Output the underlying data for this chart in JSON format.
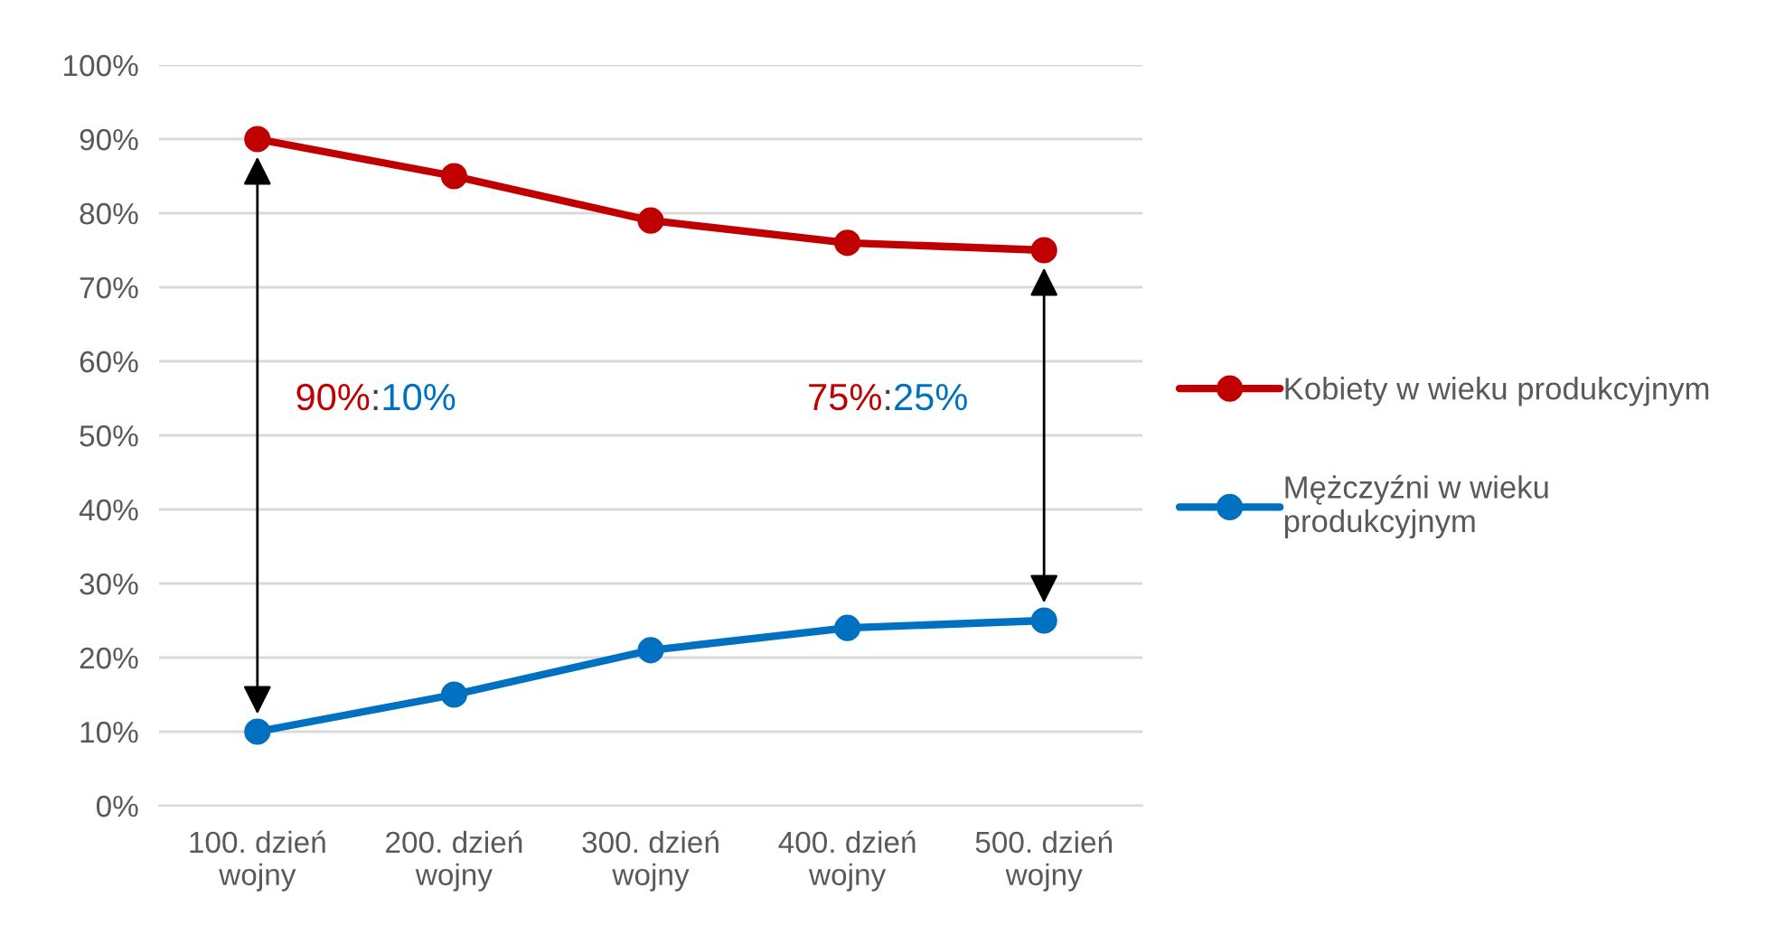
{
  "chart_data": {
    "type": "line",
    "categories": [
      "100. dzień wojny",
      "200. dzień wojny",
      "300. dzień wojny",
      "400. dzień wojny",
      "500. dzień wojny"
    ],
    "series": [
      {
        "name": "Kobiety w wieku produkcyjnym",
        "color": "#c00000",
        "values": [
          90,
          85,
          79,
          76,
          75
        ]
      },
      {
        "name": "Mężczyźni w wieku produkcyjnym",
        "color": "#0070c0",
        "values": [
          10,
          15,
          21,
          24,
          25
        ]
      }
    ],
    "ylim": [
      0,
      100
    ],
    "yticks": [
      {
        "value": 0,
        "label": "0%"
      },
      {
        "value": 10,
        "label": "10%"
      },
      {
        "value": 20,
        "label": "20%"
      },
      {
        "value": 30,
        "label": "30%"
      },
      {
        "value": 40,
        "label": "40%"
      },
      {
        "value": 50,
        "label": "50%"
      },
      {
        "value": 60,
        "label": "60%"
      },
      {
        "value": 70,
        "label": "70%"
      },
      {
        "value": 80,
        "label": "80%"
      },
      {
        "value": 90,
        "label": "90%"
      },
      {
        "value": 100,
        "label": "100%"
      }
    ],
    "grid": "y",
    "legend": "right",
    "marker": "circle",
    "line_style": "solid",
    "annotations": [
      "90%:10%",
      "75%:25%"
    ]
  }
}
